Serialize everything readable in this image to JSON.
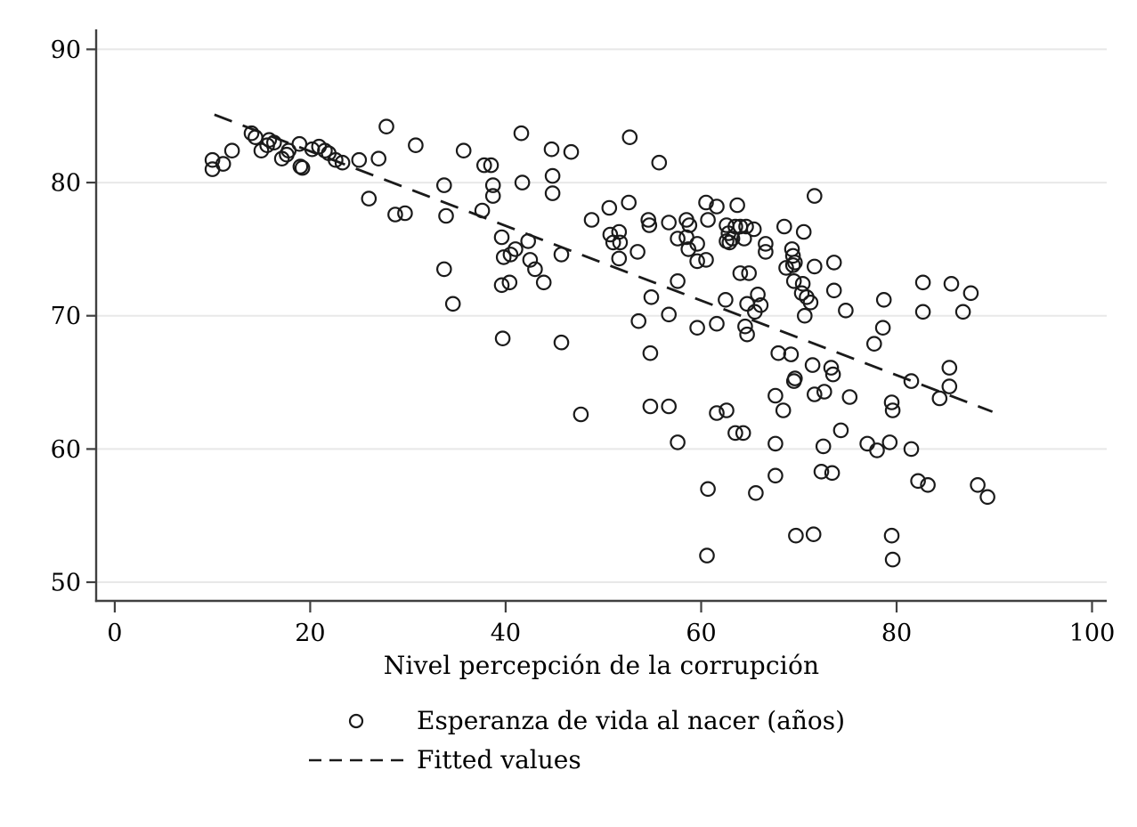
{
  "figure": {
    "background": "#ffffff",
    "x_axis_label": "Nivel percepción de la corrupción",
    "legend": [
      {
        "marker": "hollow-circle",
        "label": "Esperanza de vida al nacer (años)"
      },
      {
        "marker": "dashed-line",
        "label": "Fitted values"
      }
    ]
  },
  "chart_data": {
    "type": "scatter",
    "title": "",
    "xlabel": "Nivel percepción de la corrupción",
    "ylabel": "",
    "xlim": [
      -1.9,
      101.5
    ],
    "ylim": [
      48.6,
      91.5
    ],
    "x_ticks": [
      0,
      20,
      40,
      60,
      80,
      100
    ],
    "y_ticks": [
      50,
      60,
      70,
      80,
      90
    ],
    "grid": "horizontal",
    "legend_position": "below",
    "colors": {
      "marker": "#1a1a1a",
      "fitted": "#1a1a1a",
      "grid": "#e8e8e8",
      "axis": "#404040",
      "text": "#000000"
    },
    "series": [
      {
        "name": "Esperanza de vida al nacer (años)",
        "kind": "scatter",
        "marker": "hollow-circle",
        "points": [
          [
            10.0,
            81.7
          ],
          [
            10.0,
            81.0
          ],
          [
            11.1,
            81.4
          ],
          [
            12.0,
            82.4
          ],
          [
            14.0,
            83.7
          ],
          [
            14.4,
            83.4
          ],
          [
            15.0,
            82.4
          ],
          [
            15.6,
            82.8
          ],
          [
            15.8,
            83.2
          ],
          [
            16.3,
            83.0
          ],
          [
            17.1,
            81.8
          ],
          [
            17.6,
            82.1
          ],
          [
            17.8,
            82.4
          ],
          [
            18.9,
            82.9
          ],
          [
            19.0,
            81.2
          ],
          [
            19.2,
            81.1
          ],
          [
            20.2,
            82.5
          ],
          [
            20.9,
            82.7
          ],
          [
            21.5,
            82.4
          ],
          [
            21.9,
            82.2
          ],
          [
            22.6,
            81.7
          ],
          [
            23.3,
            81.5
          ],
          [
            25.0,
            81.7
          ],
          [
            26.0,
            78.8
          ],
          [
            27.0,
            81.8
          ],
          [
            27.8,
            84.2
          ],
          [
            28.7,
            77.6
          ],
          [
            29.7,
            77.7
          ],
          [
            30.8,
            82.8
          ],
          [
            33.7,
            79.8
          ],
          [
            33.9,
            77.5
          ],
          [
            33.7,
            73.5
          ],
          [
            34.6,
            70.9
          ],
          [
            35.7,
            82.4
          ],
          [
            37.6,
            77.9
          ],
          [
            37.8,
            81.3
          ],
          [
            38.5,
            81.3
          ],
          [
            38.7,
            79.8
          ],
          [
            38.7,
            79.0
          ],
          [
            39.6,
            75.9
          ],
          [
            39.8,
            74.4
          ],
          [
            40.5,
            74.6
          ],
          [
            41.0,
            75.0
          ],
          [
            39.6,
            72.3
          ],
          [
            40.4,
            72.5
          ],
          [
            41.6,
            83.7
          ],
          [
            41.7,
            80.0
          ],
          [
            42.3,
            75.6
          ],
          [
            42.5,
            74.2
          ],
          [
            43.0,
            73.5
          ],
          [
            43.9,
            72.5
          ],
          [
            39.7,
            68.3
          ],
          [
            44.7,
            82.5
          ],
          [
            46.7,
            82.3
          ],
          [
            44.8,
            80.5
          ],
          [
            44.8,
            79.2
          ],
          [
            52.7,
            83.4
          ],
          [
            55.7,
            81.5
          ],
          [
            48.8,
            77.2
          ],
          [
            50.6,
            78.1
          ],
          [
            52.6,
            78.5
          ],
          [
            54.6,
            77.2
          ],
          [
            54.7,
            76.8
          ],
          [
            56.7,
            77.0
          ],
          [
            50.7,
            76.1
          ],
          [
            51.6,
            76.3
          ],
          [
            51.0,
            75.5
          ],
          [
            51.7,
            75.5
          ],
          [
            51.6,
            74.3
          ],
          [
            53.5,
            74.8
          ],
          [
            57.6,
            75.8
          ],
          [
            58.5,
            75.9
          ],
          [
            58.5,
            77.2
          ],
          [
            58.8,
            76.8
          ],
          [
            58.7,
            75.0
          ],
          [
            59.6,
            75.4
          ],
          [
            60.5,
            78.5
          ],
          [
            61.6,
            78.2
          ],
          [
            60.7,
            77.2
          ],
          [
            59.6,
            74.1
          ],
          [
            60.5,
            74.2
          ],
          [
            63.7,
            78.3
          ],
          [
            62.6,
            76.8
          ],
          [
            62.8,
            76.2
          ],
          [
            62.9,
            75.5
          ],
          [
            63.2,
            75.8
          ],
          [
            63.5,
            76.7
          ],
          [
            64.0,
            76.7
          ],
          [
            64.6,
            76.7
          ],
          [
            65.4,
            76.5
          ],
          [
            64.4,
            75.8
          ],
          [
            62.6,
            75.6
          ],
          [
            66.6,
            75.4
          ],
          [
            66.6,
            74.8
          ],
          [
            68.5,
            76.7
          ],
          [
            70.5,
            76.3
          ],
          [
            71.6,
            79.0
          ],
          [
            69.3,
            75.0
          ],
          [
            69.4,
            74.5
          ],
          [
            69.6,
            74.0
          ],
          [
            68.7,
            73.6
          ],
          [
            69.4,
            73.8
          ],
          [
            71.6,
            73.7
          ],
          [
            73.6,
            74.0
          ],
          [
            69.5,
            72.6
          ],
          [
            70.4,
            72.4
          ],
          [
            70.3,
            71.7
          ],
          [
            70.8,
            71.4
          ],
          [
            71.2,
            71.0
          ],
          [
            45.7,
            74.6
          ],
          [
            45.7,
            68.0
          ],
          [
            57.6,
            72.6
          ],
          [
            64.0,
            73.2
          ],
          [
            64.9,
            73.2
          ],
          [
            54.9,
            71.4
          ],
          [
            62.5,
            71.2
          ],
          [
            64.7,
            70.9
          ],
          [
            65.8,
            71.6
          ],
          [
            65.5,
            70.3
          ],
          [
            66.1,
            70.8
          ],
          [
            53.6,
            69.6
          ],
          [
            56.7,
            70.1
          ],
          [
            59.6,
            69.1
          ],
          [
            61.6,
            69.4
          ],
          [
            64.5,
            69.2
          ],
          [
            64.7,
            68.6
          ],
          [
            70.6,
            70.0
          ],
          [
            74.8,
            70.4
          ],
          [
            73.6,
            71.9
          ],
          [
            67.9,
            67.2
          ],
          [
            69.2,
            67.1
          ],
          [
            54.8,
            67.2
          ],
          [
            78.7,
            71.2
          ],
          [
            82.7,
            72.5
          ],
          [
            82.7,
            70.3
          ],
          [
            85.6,
            72.4
          ],
          [
            87.6,
            71.7
          ],
          [
            86.8,
            70.3
          ],
          [
            78.6,
            69.1
          ],
          [
            77.7,
            67.9
          ],
          [
            47.7,
            62.6
          ],
          [
            54.8,
            63.2
          ],
          [
            56.7,
            63.2
          ],
          [
            57.6,
            60.5
          ],
          [
            60.7,
            57.0
          ],
          [
            60.6,
            52.0
          ],
          [
            61.6,
            62.7
          ],
          [
            62.6,
            62.9
          ],
          [
            63.5,
            61.2
          ],
          [
            64.3,
            61.2
          ],
          [
            65.6,
            56.7
          ],
          [
            67.6,
            64.0
          ],
          [
            68.4,
            62.9
          ],
          [
            67.6,
            60.4
          ],
          [
            67.6,
            58.0
          ],
          [
            69.6,
            65.3
          ],
          [
            69.7,
            53.5
          ],
          [
            71.5,
            53.6
          ],
          [
            71.4,
            66.3
          ],
          [
            73.3,
            66.1
          ],
          [
            73.5,
            65.6
          ],
          [
            75.2,
            63.9
          ],
          [
            71.6,
            64.1
          ],
          [
            72.6,
            64.3
          ],
          [
            72.5,
            60.2
          ],
          [
            72.3,
            58.3
          ],
          [
            73.4,
            58.2
          ],
          [
            74.3,
            61.4
          ],
          [
            69.5,
            65.1
          ],
          [
            81.5,
            65.1
          ],
          [
            84.4,
            63.8
          ],
          [
            85.4,
            66.1
          ],
          [
            85.4,
            64.7
          ],
          [
            79.5,
            63.5
          ],
          [
            79.6,
            62.9
          ],
          [
            77.0,
            60.4
          ],
          [
            78.0,
            59.9
          ],
          [
            79.3,
            60.5
          ],
          [
            81.5,
            60.0
          ],
          [
            82.2,
            57.6
          ],
          [
            83.2,
            57.3
          ],
          [
            88.3,
            57.3
          ],
          [
            89.3,
            56.4
          ],
          [
            79.5,
            53.5
          ],
          [
            79.6,
            51.7
          ]
        ]
      },
      {
        "name": "Fitted values",
        "kind": "line",
        "style": "dashed",
        "points": [
          [
            10.2,
            85.1
          ],
          [
            89.8,
            62.8
          ]
        ]
      }
    ]
  }
}
